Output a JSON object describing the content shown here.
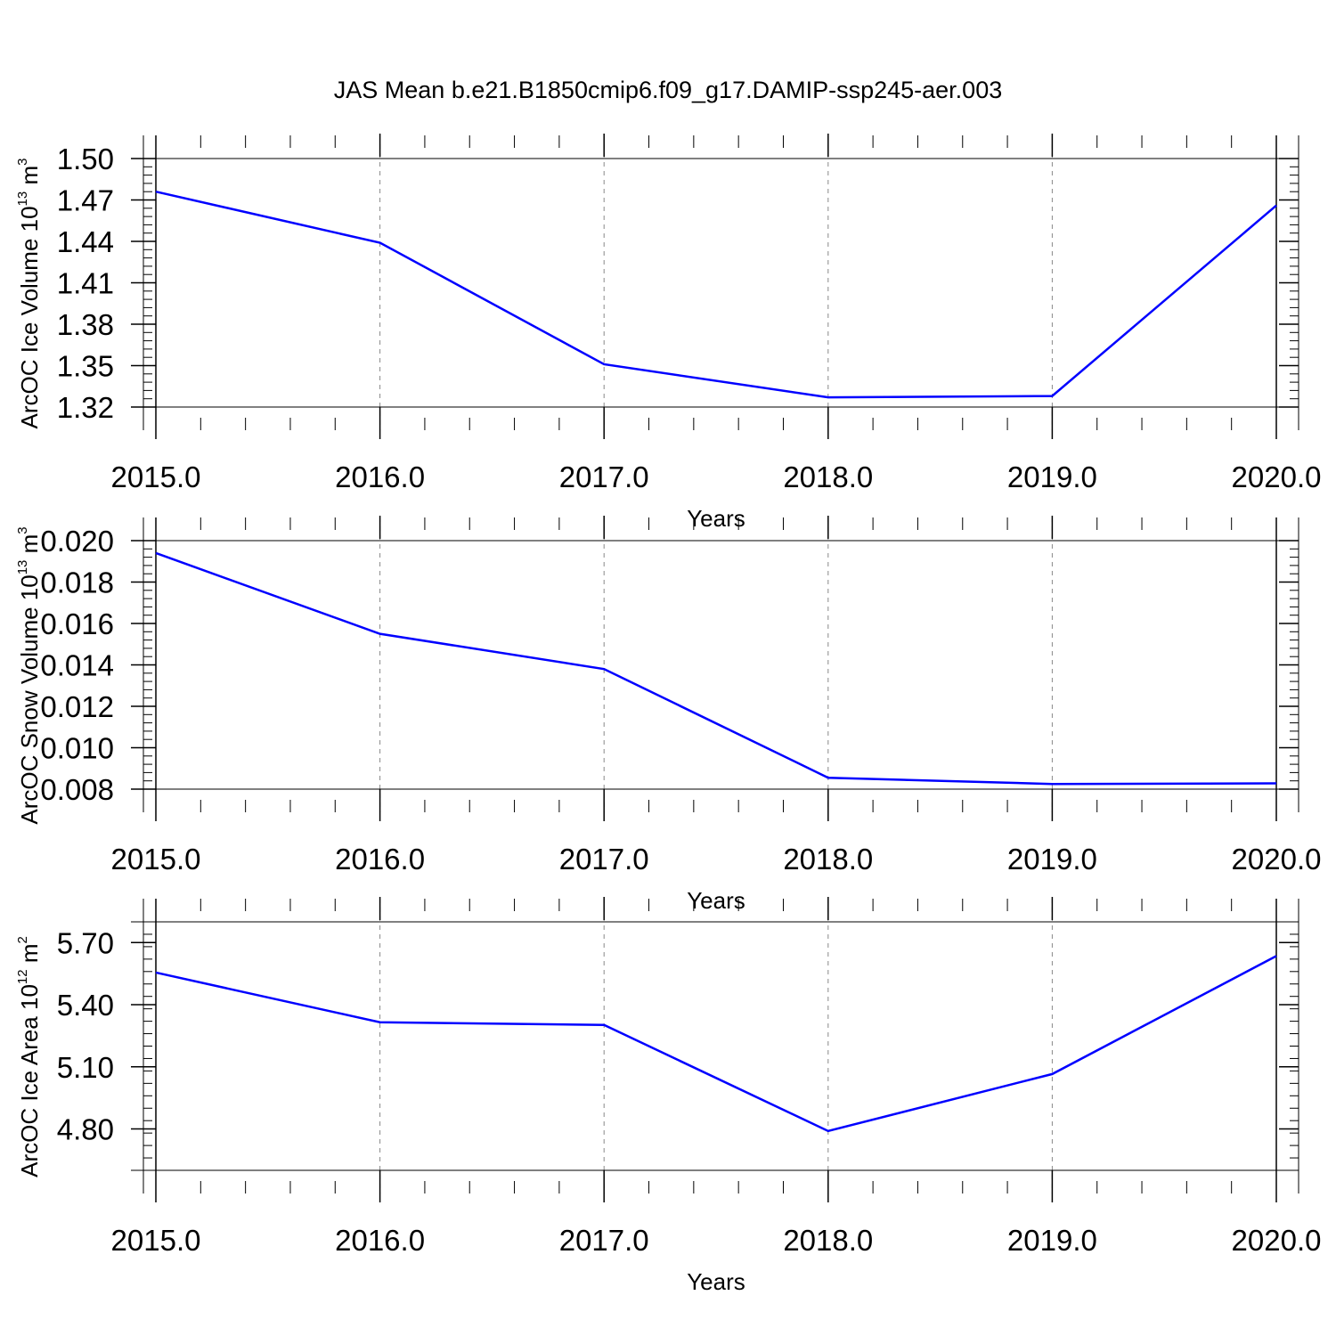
{
  "title": "JAS Mean b.e21.B1850cmip6.f09_g17.DAMIP-ssp245-aer.003",
  "colors": {
    "line": "#0000ff",
    "axis": "#000000",
    "grid": "#888888"
  },
  "chart_data": [
    {
      "type": "line",
      "x": [
        2015,
        2016,
        2017,
        2018,
        2019,
        2020
      ],
      "series": [
        {
          "values": [
            1.476,
            1.439,
            1.351,
            1.327,
            1.328,
            1.466
          ]
        }
      ],
      "xlabel": "Years",
      "ylabel": {
        "text": "ArcOC Ice Volume 10",
        "sup": "13",
        "unit": " m",
        "unit_sup": "3"
      },
      "xticks": [
        "2015.0",
        "2016.0",
        "2017.0",
        "2018.0",
        "2019.0",
        "2020.0"
      ],
      "yticks": [
        "1.32",
        "1.35",
        "1.38",
        "1.41",
        "1.44",
        "1.47",
        "1.50"
      ],
      "xlim": [
        2015,
        2020
      ],
      "ylim": [
        1.32,
        1.5
      ],
      "grid": "vertical dashed"
    },
    {
      "type": "line",
      "x": [
        2015,
        2016,
        2017,
        2018,
        2019,
        2020
      ],
      "series": [
        {
          "values": [
            0.0194,
            0.0155,
            0.0138,
            0.00855,
            0.00825,
            0.00828
          ]
        }
      ],
      "xlabel": "Years",
      "ylabel": {
        "text": "ArcOC Snow Volume 10",
        "sup": "13",
        "unit": " m",
        "unit_sup": "3"
      },
      "xticks": [
        "2015.0",
        "2016.0",
        "2017.0",
        "2018.0",
        "2019.0",
        "2020.0"
      ],
      "yticks": [
        "0.008",
        "0.010",
        "0.012",
        "0.014",
        "0.016",
        "0.018",
        "0.020"
      ],
      "xlim": [
        2015,
        2020
      ],
      "ylim": [
        0.008,
        0.02
      ],
      "grid": "vertical dashed"
    },
    {
      "type": "line",
      "x": [
        2015,
        2016,
        2017,
        2018,
        2019,
        2020
      ],
      "series": [
        {
          "values": [
            5.555,
            5.315,
            5.302,
            4.79,
            5.065,
            5.635
          ]
        }
      ],
      "xlabel": "Years",
      "ylabel": {
        "text": "ArcOC Ice Area 10",
        "sup": "12",
        "unit": " m",
        "unit_sup": "2"
      },
      "xticks": [
        "2015.0",
        "2016.0",
        "2017.0",
        "2018.0",
        "2019.0",
        "2020.0"
      ],
      "yticks": [
        "4.80",
        "5.10",
        "5.40",
        "5.70"
      ],
      "ytick_values": [
        4.8,
        5.1,
        5.4,
        5.7
      ],
      "xlim": [
        2015,
        2020
      ],
      "ylim": [
        4.6,
        5.8
      ],
      "grid": "vertical dashed"
    }
  ]
}
